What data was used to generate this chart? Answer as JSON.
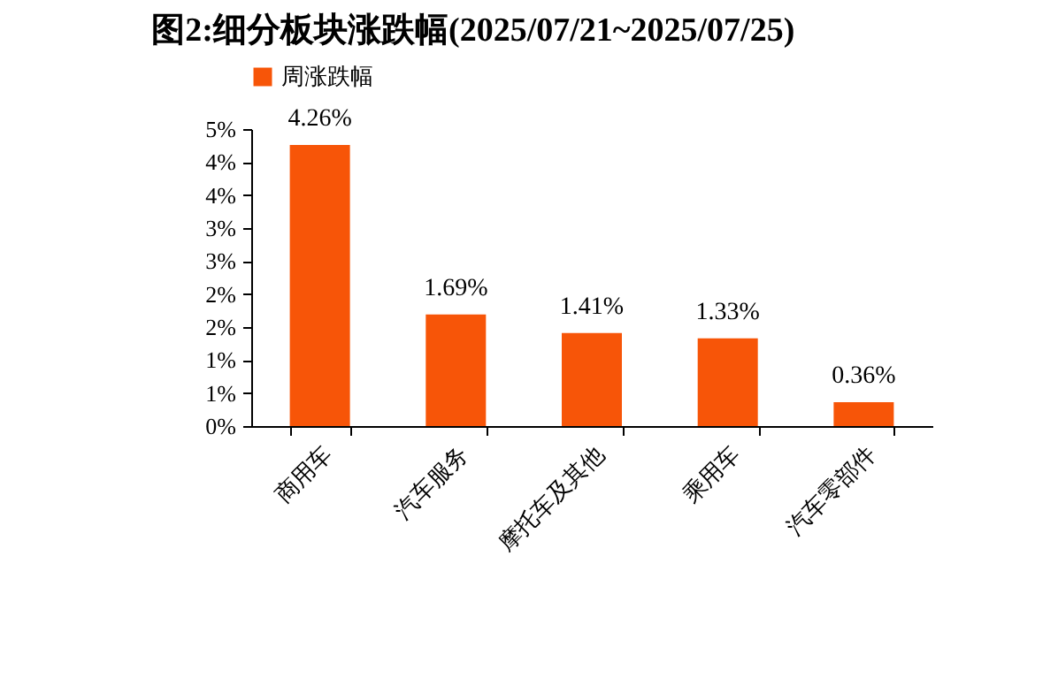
{
  "chart_data": {
    "type": "bar",
    "title": "图2:细分板块涨跌幅(2025/07/21~2025/07/25)",
    "categories": [
      "商用车",
      "汽车服务",
      "摩托车及其他",
      "乘用车",
      "汽车零部件"
    ],
    "series": [
      {
        "name": "周涨跌幅",
        "color": "#f75508",
        "values": [
          4.26,
          1.69,
          1.41,
          1.33,
          0.36
        ],
        "value_labels": [
          "4.26%",
          "1.69%",
          "1.41%",
          "1.33%",
          "0.36%"
        ]
      }
    ],
    "ylim": [
      0,
      4.5
    ],
    "yticks": [
      {
        "value": 0,
        "label": "0%"
      },
      {
        "value": 0.5,
        "label": "1%"
      },
      {
        "value": 1,
        "label": "1%"
      },
      {
        "value": 1.5,
        "label": "2%"
      },
      {
        "value": 2,
        "label": "2%"
      },
      {
        "value": 2.5,
        "label": "3%"
      },
      {
        "value": 3,
        "label": "3%"
      },
      {
        "value": 3.5,
        "label": "4%"
      },
      {
        "value": 4,
        "label": "4%"
      },
      {
        "value": 4.5,
        "label": "5%"
      }
    ],
    "grid": false,
    "legend": "top"
  }
}
